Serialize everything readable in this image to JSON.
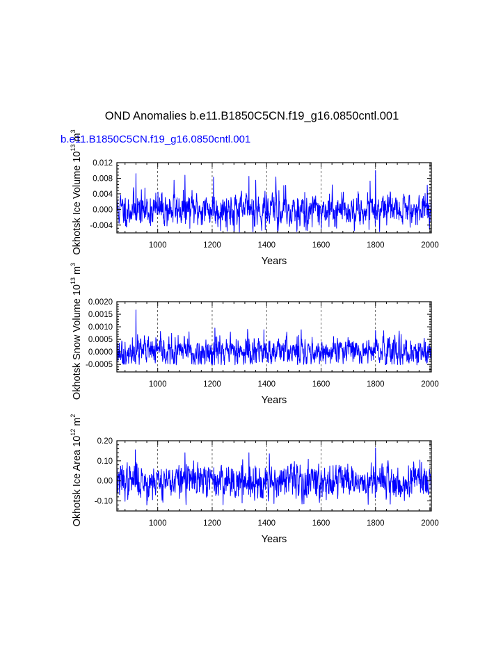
{
  "figure": {
    "title": "OND Anomalies b.e11.B1850C5CN.f19_g16.0850cntl.001",
    "subtitle": "b.e11.B1850C5CN.f19_g16.0850cntl.001",
    "subtitle_color": "#0000ff",
    "line_color": "#0000ff"
  },
  "chart_data": [
    {
      "type": "line",
      "id": "ice-volume",
      "title": "",
      "xlabel": "Years",
      "ylabel": "Okhotsk Ice Volume 10",
      "ylabel_sup": "13",
      "ylabel_unit": "m",
      "ylabel_unit_sup": "3",
      "xlim": [
        850,
        2005
      ],
      "ylim": [
        -0.006,
        0.012
      ],
      "xticks": [
        1000,
        1200,
        1400,
        1600,
        1800,
        2000
      ],
      "xtick_labels": [
        "1000",
        "1200",
        "1400",
        "1600",
        "1800",
        "2000"
      ],
      "yticks": [
        -0.004,
        0.0,
        0.004,
        0.008,
        0.012
      ],
      "ytick_labels": [
        "-0.004",
        "0.000",
        "0.004",
        "0.008",
        "0.012"
      ],
      "grid": "vertical dashed at major x ticks",
      "series": [
        {
          "name": "Okhotsk Ice Volume",
          "seed": 11,
          "sigma": 0.0022,
          "min": -0.0058,
          "max": 0.0085,
          "spikes": [
            [
              920,
              0.0092
            ],
            [
              1060,
              0.0075
            ],
            [
              1100,
              0.0088
            ],
            [
              1205,
              0.0083
            ],
            [
              1335,
              0.0085
            ],
            [
              1360,
              0.0075
            ],
            [
              1800,
              0.01
            ],
            [
              1780,
              0.0073
            ],
            [
              1300,
              -0.0058
            ],
            [
              1395,
              -0.0052
            ]
          ]
        }
      ]
    },
    {
      "type": "line",
      "id": "snow-volume",
      "title": "",
      "xlabel": "Years",
      "ylabel": "Okhotsk Snow Volume 10",
      "ylabel_sup": "13",
      "ylabel_unit": "m",
      "ylabel_unit_sup": "3",
      "xlim": [
        850,
        2005
      ],
      "ylim": [
        -0.0008,
        0.002
      ],
      "xticks": [
        1000,
        1200,
        1400,
        1600,
        1800,
        2000
      ],
      "xtick_labels": [
        "1000",
        "1200",
        "1400",
        "1600",
        "1800",
        "2000"
      ],
      "yticks": [
        -0.0005,
        0.0,
        0.0005,
        0.001,
        0.0015,
        0.002
      ],
      "ytick_labels": [
        "-0.0005",
        "0.0000",
        "0.0005",
        "0.0010",
        "0.0015",
        "0.0020"
      ],
      "grid": "vertical dashed at major x ticks",
      "series": [
        {
          "name": "Okhotsk Snow Volume",
          "seed": 23,
          "sigma": 0.00028,
          "min": -0.00052,
          "max": 0.0009,
          "spikes": [
            [
              920,
              0.00167
            ],
            [
              1210,
              0.00095
            ],
            [
              1330,
              0.0009
            ],
            [
              1390,
              0.00088
            ],
            [
              1800,
              0.00085
            ],
            [
              1115,
              0.0008
            ]
          ]
        }
      ]
    },
    {
      "type": "line",
      "id": "ice-area",
      "title": "",
      "xlabel": "Years",
      "ylabel": "Okhotsk Ice Area 10",
      "ylabel_sup": "12",
      "ylabel_unit": "m",
      "ylabel_unit_sup": "2",
      "xlim": [
        850,
        2005
      ],
      "ylim": [
        -0.15,
        0.2
      ],
      "xticks": [
        1000,
        1200,
        1400,
        1600,
        1800,
        2000
      ],
      "xtick_labels": [
        "1000",
        "1200",
        "1400",
        "1600",
        "1800",
        "2000"
      ],
      "yticks": [
        -0.1,
        0.0,
        0.1,
        0.2
      ],
      "ytick_labels": [
        "-0.10",
        "0.00",
        "0.10",
        "0.20"
      ],
      "grid": "vertical dashed at major x ticks",
      "series": [
        {
          "name": "Okhotsk Ice Area",
          "seed": 37,
          "sigma": 0.042,
          "min": -0.125,
          "max": 0.14,
          "spikes": [
            [
              918,
              0.155
            ],
            [
              1800,
              0.165
            ],
            [
              1100,
              0.14
            ],
            [
              1335,
              0.14
            ],
            [
              1410,
              0.135
            ],
            [
              960,
              -0.12
            ],
            [
              1310,
              -0.11
            ]
          ]
        }
      ]
    }
  ]
}
